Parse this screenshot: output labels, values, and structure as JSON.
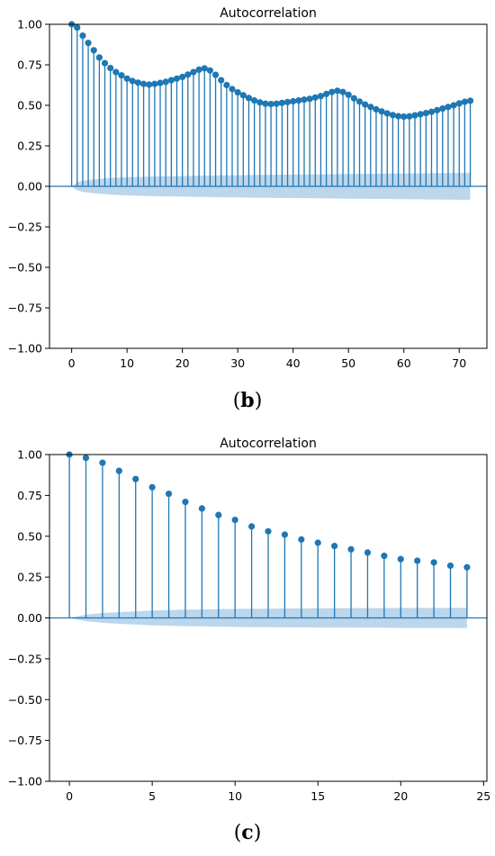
{
  "colors": {
    "stem": "#1f77b4",
    "band": "#a6c8e6",
    "axis": "#000000"
  },
  "chart_data": [
    {
      "type": "stem",
      "panel": "b",
      "title": "Autocorrelation",
      "caption_letter": "b",
      "xlim": [
        -4,
        75
      ],
      "ylim": [
        -1.0,
        1.0
      ],
      "xticks": [
        "0",
        "10",
        "20",
        "30",
        "40",
        "50",
        "60",
        "70"
      ],
      "xtick_values": [
        0,
        10,
        20,
        30,
        40,
        50,
        60,
        70
      ],
      "yticks": [
        "1.00",
        "0.75",
        "0.50",
        "0.25",
        "0.00",
        "−0.25",
        "−0.50",
        "−0.75",
        "−1.00"
      ],
      "ytick_values": [
        1.0,
        0.75,
        0.5,
        0.25,
        0.0,
        -0.25,
        -0.5,
        -0.75,
        -1.0
      ],
      "x": [
        0,
        1,
        2,
        3,
        4,
        5,
        6,
        7,
        8,
        9,
        10,
        11,
        12,
        13,
        14,
        15,
        16,
        17,
        18,
        19,
        20,
        21,
        22,
        23,
        24,
        25,
        26,
        27,
        28,
        29,
        30,
        31,
        32,
        33,
        34,
        35,
        36,
        37,
        38,
        39,
        40,
        41,
        42,
        43,
        44,
        45,
        46,
        47,
        48,
        49,
        50,
        51,
        52,
        53,
        54,
        55,
        56,
        57,
        58,
        59,
        60,
        61,
        62,
        63,
        64,
        65,
        66,
        67,
        68,
        69,
        70,
        71,
        72
      ],
      "values": [
        1.0,
        0.98,
        0.93,
        0.885,
        0.84,
        0.795,
        0.76,
        0.73,
        0.705,
        0.685,
        0.665,
        0.65,
        0.64,
        0.632,
        0.628,
        0.632,
        0.638,
        0.645,
        0.655,
        0.665,
        0.675,
        0.69,
        0.705,
        0.72,
        0.728,
        0.715,
        0.688,
        0.655,
        0.625,
        0.6,
        0.58,
        0.562,
        0.545,
        0.53,
        0.518,
        0.51,
        0.508,
        0.51,
        0.515,
        0.52,
        0.525,
        0.53,
        0.535,
        0.54,
        0.548,
        0.557,
        0.57,
        0.582,
        0.59,
        0.582,
        0.565,
        0.543,
        0.523,
        0.505,
        0.49,
        0.475,
        0.462,
        0.45,
        0.44,
        0.433,
        0.43,
        0.432,
        0.438,
        0.445,
        0.452,
        0.46,
        0.47,
        0.48,
        0.49,
        0.5,
        0.512,
        0.522,
        0.528
      ],
      "confidence_band": [
        0.0,
        0.025,
        0.034,
        0.039,
        0.043,
        0.046,
        0.049,
        0.051,
        0.053,
        0.055,
        0.056,
        0.057,
        0.058,
        0.059,
        0.06,
        0.061,
        0.061,
        0.062,
        0.063,
        0.063,
        0.064,
        0.064,
        0.065,
        0.065,
        0.066,
        0.066,
        0.067,
        0.067,
        0.068,
        0.068,
        0.069,
        0.069,
        0.07,
        0.07,
        0.071,
        0.071,
        0.071,
        0.072,
        0.072,
        0.072,
        0.073,
        0.073,
        0.073,
        0.074,
        0.074,
        0.074,
        0.075,
        0.075,
        0.075,
        0.076,
        0.076,
        0.076,
        0.077,
        0.077,
        0.077,
        0.078,
        0.078,
        0.078,
        0.079,
        0.079,
        0.079,
        0.08,
        0.08,
        0.08,
        0.081,
        0.081,
        0.081,
        0.082,
        0.082,
        0.082,
        0.083,
        0.083,
        0.083
      ]
    },
    {
      "type": "stem",
      "panel": "c",
      "title": "Autocorrelation",
      "caption_letter": "c",
      "xlim": [
        -1.2,
        25.2
      ],
      "ylim": [
        -1.0,
        1.0
      ],
      "xticks": [
        "0",
        "5",
        "10",
        "15",
        "20",
        "25"
      ],
      "xtick_values": [
        0,
        5,
        10,
        15,
        20,
        25
      ],
      "yticks": [
        "1.00",
        "0.75",
        "0.50",
        "0.25",
        "0.00",
        "−0.25",
        "−0.50",
        "−0.75",
        "−1.00"
      ],
      "ytick_values": [
        1.0,
        0.75,
        0.5,
        0.25,
        0.0,
        -0.25,
        -0.5,
        -0.75,
        -1.0
      ],
      "x": [
        0,
        1,
        2,
        3,
        4,
        5,
        6,
        7,
        8,
        9,
        10,
        11,
        12,
        13,
        14,
        15,
        16,
        17,
        18,
        19,
        20,
        21,
        22,
        23,
        24
      ],
      "values": [
        1.0,
        0.98,
        0.95,
        0.9,
        0.85,
        0.8,
        0.76,
        0.71,
        0.67,
        0.63,
        0.6,
        0.56,
        0.53,
        0.51,
        0.48,
        0.46,
        0.44,
        0.42,
        0.4,
        0.38,
        0.36,
        0.35,
        0.34,
        0.32,
        0.31
      ],
      "confidence_band": [
        0.0,
        0.02,
        0.03,
        0.036,
        0.041,
        0.045,
        0.048,
        0.05,
        0.052,
        0.054,
        0.055,
        0.056,
        0.057,
        0.058,
        0.058,
        0.059,
        0.059,
        0.06,
        0.06,
        0.06,
        0.061,
        0.061,
        0.061,
        0.061,
        0.062
      ]
    }
  ]
}
